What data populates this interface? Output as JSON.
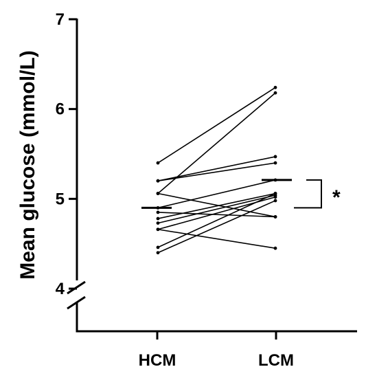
{
  "chart_data": {
    "type": "line",
    "ylabel": "Mean glucose (mmol/L)",
    "xlabel": "",
    "categories": [
      "HCM",
      "LCM"
    ],
    "y_ticks": [
      4,
      5,
      6,
      7
    ],
    "ylim": [
      4,
      7
    ],
    "axis_break": true,
    "grid": false,
    "pairs": [
      [
        5.4,
        6.24
      ],
      [
        5.06,
        6.18
      ],
      [
        5.2,
        5.47
      ],
      [
        5.2,
        5.4
      ],
      [
        5.06,
        4.8
      ],
      [
        4.9,
        5.21
      ],
      [
        4.85,
        4.8
      ],
      [
        4.78,
        5.06
      ],
      [
        4.73,
        5.04
      ],
      [
        4.66,
        5.02
      ],
      [
        4.46,
        5.06
      ],
      [
        4.4,
        4.98
      ],
      [
        4.66,
        4.45
      ]
    ],
    "means": [
      4.9,
      5.21
    ],
    "significance": "*"
  }
}
